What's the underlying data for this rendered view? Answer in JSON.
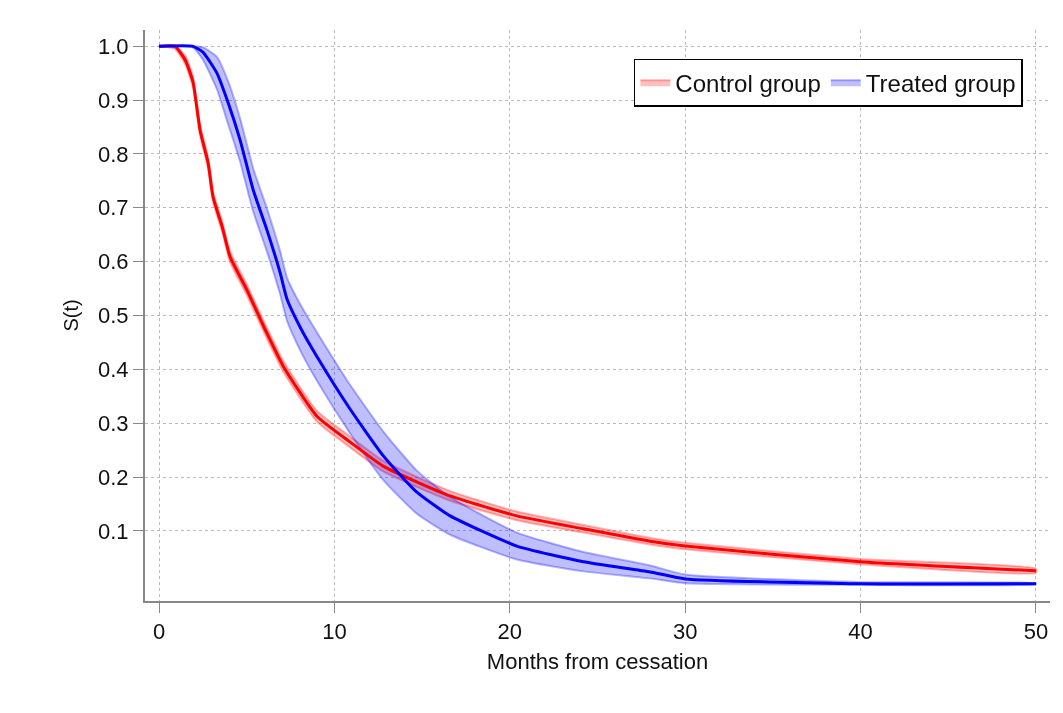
{
  "chart_data": {
    "type": "line",
    "xlabel": "Months from cessation",
    "ylabel": "S(t)",
    "xlim": [
      -0.8,
      50.8
    ],
    "ylim": [
      -0.03,
      1.03
    ],
    "xticks": [
      0,
      10,
      20,
      30,
      40,
      50
    ],
    "yticks": [
      0.1,
      0.2,
      0.3,
      0.4,
      0.5,
      0.6,
      0.7,
      0.8,
      0.9,
      {
        "value": 1,
        "label": "1.0"
      }
    ],
    "grid": true,
    "legend": "top right",
    "line_style": "solid",
    "marker": "none",
    "series": [
      {
        "name": "Control group",
        "color": "#ff0000",
        "x": [
          0,
          0.9,
          1.5,
          1.94,
          2.34,
          2.8,
          3.08,
          3.6,
          4.05,
          5.0,
          6.05,
          7.08,
          9.0,
          10.9,
          12.8,
          16.6,
          20.4,
          24.2,
          28,
          30,
          40,
          50
        ],
        "values": [
          1.0,
          1.0,
          0.974,
          0.933,
          0.844,
          0.783,
          0.72,
          0.665,
          0.609,
          0.548,
          0.474,
          0.406,
          0.313,
          0.265,
          0.22,
          0.165,
          0.128,
          0.104,
          0.081,
          0.072,
          0.043,
          0.026
        ],
        "lower": [
          1.0,
          0.995,
          0.966,
          0.923,
          0.834,
          0.773,
          0.71,
          0.655,
          0.599,
          0.538,
          0.464,
          0.396,
          0.303,
          0.255,
          0.21,
          0.156,
          0.12,
          0.097,
          0.075,
          0.066,
          0.038,
          0.022
        ],
        "upper": [
          1.0,
          1.0,
          0.982,
          0.943,
          0.854,
          0.793,
          0.73,
          0.675,
          0.619,
          0.558,
          0.484,
          0.416,
          0.323,
          0.275,
          0.23,
          0.174,
          0.136,
          0.111,
          0.087,
          0.078,
          0.048,
          0.03
        ]
      },
      {
        "name": "Treated group",
        "color": "#0000ff",
        "x": [
          0,
          1.9,
          2.5,
          3.3,
          3.95,
          4.62,
          5.37,
          6.15,
          6.9,
          7.3,
          8.1,
          9.0,
          10.9,
          12.8,
          14.7,
          16.6,
          20.4,
          24.2,
          28,
          30,
          40,
          50
        ],
        "values": [
          1.0,
          1.0,
          0.989,
          0.95,
          0.894,
          0.826,
          0.733,
          0.659,
          0.58,
          0.53,
          0.475,
          0.424,
          0.326,
          0.239,
          0.172,
          0.128,
          0.072,
          0.043,
          0.024,
          0.011,
          0.002,
          0.002
        ],
        "lower": [
          1.0,
          0.998,
          0.975,
          0.92,
          0.854,
          0.786,
          0.693,
          0.619,
          0.54,
          0.49,
          0.432,
          0.379,
          0.281,
          0.194,
          0.132,
          0.093,
          0.047,
          0.025,
          0.012,
          0.003,
          0.0,
          0.001
        ],
        "upper": [
          1.0,
          1.0,
          0.998,
          0.98,
          0.934,
          0.866,
          0.773,
          0.699,
          0.62,
          0.57,
          0.518,
          0.469,
          0.371,
          0.284,
          0.212,
          0.163,
          0.097,
          0.061,
          0.036,
          0.019,
          0.005,
          0.003
        ]
      }
    ]
  }
}
